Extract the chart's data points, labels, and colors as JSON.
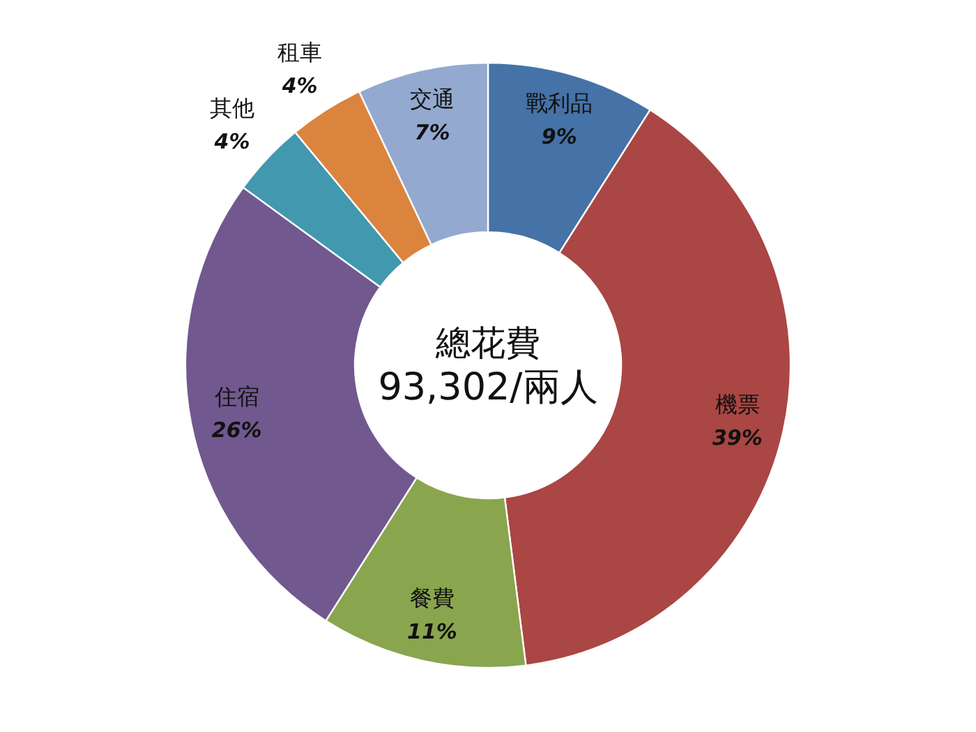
{
  "chart_data": {
    "type": "donut",
    "categories": [
      "戰利品",
      "機票",
      "餐費",
      "住宿",
      "其他",
      "租車",
      "交通"
    ],
    "values": [
      9,
      39,
      11,
      26,
      4,
      4,
      7
    ],
    "colors": [
      "#4572a7",
      "#aa4643",
      "#89a54e",
      "#71588f",
      "#4198af",
      "#db843d",
      "#93a9cf"
    ],
    "value_labels": [
      "9%",
      "39%",
      "11%",
      "26%",
      "4%",
      "4%",
      "7%"
    ],
    "annotations": [
      "總花費",
      "93,302/兩人"
    ]
  }
}
